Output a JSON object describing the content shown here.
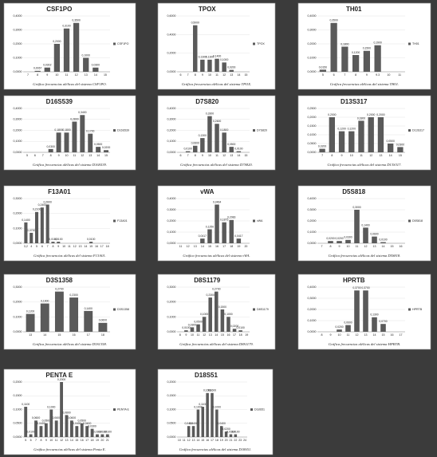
{
  "chart_data": [
    {
      "type": "bar",
      "title": "CSF1PO",
      "caption": "Gráfica frecuencias alélicas del sistema CSF1PO.",
      "categories": [
        "7",
        "8",
        "9",
        "10",
        "11",
        "12",
        "13",
        "14",
        "15"
      ],
      "series": [
        {
          "name": "CSF1PO",
          "color": "#5a5a5a",
          "values": [
            0,
            0.0067,
            0.0302,
            0.2,
            0.31,
            0.35,
            0.1,
            0.03,
            0
          ],
          "value_labels": [
            null,
            "0,0067",
            "0,0302",
            "0,2000",
            "0,3100",
            "0,3500",
            "0,1000",
            "0,0300",
            null
          ]
        }
      ],
      "ylim": [
        0,
        0.4
      ],
      "yticks": [
        {
          "value": 0,
          "label": "0,0000"
        },
        {
          "value": 0.1,
          "label": "0,1000"
        },
        {
          "value": 0.2,
          "label": "0,2000"
        },
        {
          "value": 0.3,
          "label": "0,3000"
        },
        {
          "value": 0.4,
          "label": "0,4000"
        }
      ]
    },
    {
      "type": "bar",
      "title": "TPOX",
      "caption": "Gráfica frecuencias alélicas del sistema TPOX.",
      "categories": [
        "6",
        "7",
        "8",
        "9",
        "10",
        "11",
        "12",
        "13",
        "14",
        "15"
      ],
      "series": [
        {
          "name": "TPOX",
          "color": "#5a5a5a",
          "values": [
            0,
            0,
            0.5,
            0.13,
            0.13,
            0.14,
            0.1,
            0.02,
            0,
            0
          ],
          "value_labels": [
            null,
            null,
            "0,5000",
            "0,1300",
            "0,1300",
            "0,1400",
            "0,1000",
            "0,0200",
            null,
            null
          ]
        }
      ],
      "ylim": [
        0,
        0.6
      ],
      "yticks": [
        {
          "value": 0,
          "label": "0,0000"
        },
        {
          "value": 0.2,
          "label": "0,2000"
        },
        {
          "value": 0.4,
          "label": "0,4000"
        },
        {
          "value": 0.6,
          "label": "0,6000"
        }
      ]
    },
    {
      "type": "bar",
      "title": "TH01",
      "caption": "Gráfica frecuencias alélicas del sistema TH01.",
      "categories": [
        "5",
        "6",
        "7",
        "8",
        "9",
        "9.3",
        "10",
        "11"
      ],
      "series": [
        {
          "name": "TH01",
          "color": "#5a5a5a",
          "values": [
            0.015,
            0.35,
            0.18,
            0.12,
            0.15,
            0.19,
            0,
            0
          ],
          "value_labels": [
            "0,0150",
            "0,3500",
            "0,1800",
            "0,1200",
            "0,1500",
            "0,1900",
            null,
            null
          ]
        }
      ],
      "ylim": [
        0,
        0.4
      ],
      "yticks": [
        {
          "value": 0,
          "label": "0,0000"
        },
        {
          "value": 0.1,
          "label": "0,1000"
        },
        {
          "value": 0.2,
          "label": "0,2000"
        },
        {
          "value": 0.3,
          "label": "0,3000"
        },
        {
          "value": 0.4,
          "label": "0,4000"
        }
      ]
    },
    {
      "type": "bar",
      "title": "D16S539",
      "caption": "Gráfica frecuencias alélicas del sistema D16S539.",
      "categories": [
        "5",
        "6",
        "7",
        "8",
        "9",
        "10",
        "11",
        "12",
        "13",
        "14",
        "15"
      ],
      "series": [
        {
          "name": "D16S539",
          "color": "#5a5a5a",
          "values": [
            0,
            0,
            0,
            0.03,
            0.18,
            0.18,
            0.28,
            0.34,
            0.17,
            0.05,
            0.02
          ],
          "value_labels": [
            null,
            null,
            null,
            "0,0300",
            "0,1800",
            "0,1800",
            "0,2800",
            "0,3400",
            "0,1700",
            "0,0500",
            "0,0200"
          ]
        }
      ],
      "ylim": [
        0,
        0.4
      ],
      "yticks": [
        {
          "value": 0,
          "label": "0,0000"
        },
        {
          "value": 0.1,
          "label": "0,1000"
        },
        {
          "value": 0.2,
          "label": "0,2000"
        },
        {
          "value": 0.3,
          "label": "0,3000"
        },
        {
          "value": 0.4,
          "label": "0,4000"
        }
      ]
    },
    {
      "type": "bar",
      "title": "D7S820",
      "caption": "Gráfica frecuencias alélicas del sistema D7S820.",
      "categories": [
        "6",
        "7",
        "8",
        "9",
        "10",
        "11",
        "12",
        "13",
        "14",
        "15"
      ],
      "series": [
        {
          "name": "D7S820",
          "color": "#5a5a5a",
          "values": [
            0,
            0.01,
            0.06,
            0.13,
            0.33,
            0.26,
            0.18,
            0.05,
            0.01,
            0
          ],
          "value_labels": [
            null,
            "0,0100",
            "0,0600",
            "0,1300",
            "0,3300",
            "0,2600",
            "0,1800",
            "0,0500",
            "0,0100",
            null
          ]
        }
      ],
      "ylim": [
        0,
        0.4
      ],
      "yticks": [
        {
          "value": 0,
          "label": "0,0000"
        },
        {
          "value": 0.1,
          "label": "0,1000"
        },
        {
          "value": 0.2,
          "label": "0,2000"
        },
        {
          "value": 0.3,
          "label": "0,3000"
        },
        {
          "value": 0.4,
          "label": "0,4000"
        }
      ]
    },
    {
      "type": "bar",
      "title": "D13S317",
      "caption": "Gráfica frecuencias alélicas del sistema D13S317.",
      "categories": [
        "7",
        "8",
        "9",
        "10",
        "11",
        "12",
        "13",
        "14",
        "15"
      ],
      "series": [
        {
          "name": "D13S317",
          "color": "#5a5a5a",
          "values": [
            0.02,
            0.2,
            0.12,
            0.12,
            0.18,
            0.2,
            0.2,
            0.05,
            0.03
          ],
          "value_labels": [
            "0,0200",
            "0,2000",
            "0,1200",
            "0,1200",
            "0,1800",
            "0,2000",
            "0,2000",
            "0,0500",
            "0,0300"
          ]
        }
      ],
      "ylim": [
        0,
        0.25
      ],
      "yticks": [
        {
          "value": 0,
          "label": "0,0000"
        },
        {
          "value": 0.05,
          "label": "0,0500"
        },
        {
          "value": 0.1,
          "label": "0,1000"
        },
        {
          "value": 0.15,
          "label": "0,1500"
        },
        {
          "value": 0.2,
          "label": "0,2000"
        },
        {
          "value": 0.25,
          "label": "0,2500"
        }
      ]
    },
    {
      "type": "bar",
      "title": "F13A01",
      "caption": "Gráfica frecuencias alélicas del sistema F13A01.",
      "categories": [
        "3,2",
        "4",
        "5",
        "6",
        "7",
        "8",
        "9",
        "10",
        "11",
        "12",
        "13",
        "14",
        "15",
        "16",
        "17",
        "18"
      ],
      "series": [
        {
          "name": "F13A01",
          "color": "#5a5a5a",
          "values": [
            0.14,
            0.07,
            0.21,
            0.24,
            0.26,
            0.01,
            0.01,
            0,
            0,
            0,
            0,
            0,
            0.01,
            0,
            0,
            0
          ],
          "value_labels": [
            "0,1400",
            "0,0700",
            "0,2100",
            "0,2400",
            "0,2600",
            "0,0100",
            "0,0100",
            null,
            null,
            null,
            null,
            null,
            "0,0100",
            null,
            null,
            null
          ]
        }
      ],
      "ylim": [
        0,
        0.3
      ],
      "yticks": [
        {
          "value": 0,
          "label": "0,0000"
        },
        {
          "value": 0.1,
          "label": "0,1000"
        },
        {
          "value": 0.2,
          "label": "0,2000"
        },
        {
          "value": 0.3,
          "label": "0,3000"
        }
      ]
    },
    {
      "type": "bar",
      "title": "vWA",
      "caption": "Gráfica frecuencias alélicas del sistema vWA.",
      "categories": [
        "11",
        "12",
        "13",
        "14",
        "15",
        "16",
        "17",
        "18",
        "19",
        "20"
      ],
      "series": [
        {
          "name": "vWA",
          "color": "#5a5a5a",
          "values": [
            0,
            0,
            0,
            0.0417,
            0.125,
            0.3464,
            0.1875,
            0.2083,
            0.0417,
            0
          ],
          "value_labels": [
            null,
            null,
            null,
            "0,0417",
            "0,1250",
            "0,3464",
            "0,1875",
            "0,2083",
            "0,0417",
            null
          ]
        }
      ],
      "ylim": [
        0,
        0.4
      ],
      "yticks": [
        {
          "value": 0,
          "label": "0,0000"
        },
        {
          "value": 0.1,
          "label": "0,1000"
        },
        {
          "value": 0.2,
          "label": "0,2000"
        },
        {
          "value": 0.3,
          "label": "0,3000"
        },
        {
          "value": 0.4,
          "label": "0,4000"
        }
      ]
    },
    {
      "type": "bar",
      "title": "D5S818",
      "caption": "Gráfica frecuencias alélicas del sistema D5S818.",
      "categories": [
        "7",
        "8",
        "9",
        "10",
        "11",
        "12",
        "13",
        "14",
        "15",
        "16"
      ],
      "series": [
        {
          "name": "D5S818",
          "color": "#5a5a5a",
          "values": [
            0,
            0.02,
            0.02,
            0.03,
            0.3,
            0.14,
            0.06,
            0.01,
            0,
            0
          ],
          "value_labels": [
            null,
            "0,0200",
            "0,0200",
            "0,0300",
            "0,3000",
            "0,1400",
            "0,0600",
            "0,0100",
            null,
            null
          ]
        }
      ],
      "ylim": [
        0,
        0.4
      ],
      "yticks": [
        {
          "value": 0,
          "label": "0,0000"
        },
        {
          "value": 0.1,
          "label": "0,1000"
        },
        {
          "value": 0.2,
          "label": "0,2000"
        },
        {
          "value": 0.3,
          "label": "0,3000"
        },
        {
          "value": 0.4,
          "label": "0,4000"
        }
      ]
    },
    {
      "type": "bar",
      "title": "D3S1358",
      "caption": "Gráfica frecuencias alélicas del sistema D3S1358.",
      "categories": [
        "13",
        "14",
        "15",
        "16",
        "17",
        "18"
      ],
      "series": [
        {
          "name": "D3S1358",
          "color": "#5a5a5a",
          "values": [
            0.12,
            0.19,
            0.27,
            0.23,
            0.14,
            0.06
          ],
          "value_labels": [
            "0,1200",
            "0,1900",
            "0,2700",
            "0,2300",
            "0,1400",
            "0,0600"
          ]
        }
      ],
      "ylim": [
        0,
        0.3
      ],
      "yticks": [
        {
          "value": 0,
          "label": "0,0000"
        },
        {
          "value": 0.1,
          "label": "0,1000"
        },
        {
          "value": 0.2,
          "label": "0,2000"
        },
        {
          "value": 0.3,
          "label": "0,3000"
        }
      ]
    },
    {
      "type": "bar",
      "title": "D8S1179",
      "caption": "Gráfica frecuencias alélicas del sistema D8S1179.",
      "categories": [
        "8",
        "9",
        "10",
        "11",
        "12",
        "13",
        "14",
        "15",
        "16",
        "17",
        "18",
        "19"
      ],
      "series": [
        {
          "name": "D8S1179",
          "color": "#5a5a5a",
          "values": [
            0,
            0.01,
            0.03,
            0.05,
            0.1,
            0.23,
            0.27,
            0.15,
            0.1,
            0.02,
            0.01,
            0
          ],
          "value_labels": [
            null,
            "0,0100",
            "0,0300",
            "0,0500",
            "0,1000",
            "0,2300",
            "0,2700",
            "0,1500",
            "0,1000",
            "0,0200",
            "0,0100",
            null
          ]
        }
      ],
      "ylim": [
        0,
        0.3
      ],
      "yticks": [
        {
          "value": 0,
          "label": "0,0000"
        },
        {
          "value": 0.1,
          "label": "0,1000"
        },
        {
          "value": 0.2,
          "label": "0,2000"
        },
        {
          "value": 0.3,
          "label": "0,3000"
        }
      ]
    },
    {
      "type": "bar",
      "title": "HPRTB",
      "caption": "Gráfica frecuencias alélicas del sistema HPRTB.",
      "categories": [
        "8",
        "9",
        "10",
        "11",
        "12",
        "13",
        "14",
        "15",
        "16",
        "17"
      ],
      "series": [
        {
          "name": "HPRTB",
          "color": "#5a5a5a",
          "values": [
            0,
            0,
            0.02,
            0.06,
            0.37,
            0.37,
            0.13,
            0.07,
            0,
            0
          ],
          "value_labels": [
            null,
            null,
            "0,0200",
            "0,0600",
            "0,3700",
            "0,3700",
            "0,1300",
            "0,0700",
            null,
            null
          ]
        }
      ],
      "ylim": [
        0,
        0.4
      ],
      "yticks": [
        {
          "value": 0,
          "label": "0,0000"
        },
        {
          "value": 0.1,
          "label": "0,1000"
        },
        {
          "value": 0.2,
          "label": "0,2000"
        },
        {
          "value": 0.3,
          "label": "0,3000"
        },
        {
          "value": 0.4,
          "label": "0,4000"
        }
      ]
    },
    {
      "type": "bar",
      "title": "PENTA E",
      "caption": "Gráfica frecuencias alélicas del sistema Penta E.",
      "categories": [
        "5",
        "6",
        "7",
        "8",
        "9",
        "10",
        "11",
        "12",
        "13",
        "14",
        "15",
        "16",
        "17",
        "18",
        "19",
        "20",
        "21"
      ],
      "series": [
        {
          "name": "PENTA E",
          "color": "#5a5a5a",
          "values": [
            0.11,
            0.01,
            0.06,
            0.04,
            0.05,
            0.1,
            0.06,
            0.2,
            0.08,
            0.06,
            0.04,
            0.05,
            0.04,
            0.03,
            0.01,
            0.01,
            0.01
          ],
          "value_labels": [
            "0,1100",
            "0,0100",
            "0,0600",
            "0,0400",
            "0,0500",
            "0,1000",
            "0,0600",
            "0,2000",
            "0,0800",
            "0,0600",
            "0,0400",
            "0,0500",
            "0,0400",
            "0,0300",
            "0,0100",
            "0,0100",
            "0,0100"
          ]
        }
      ],
      "ylim": [
        0,
        0.2
      ],
      "yticks": [
        {
          "value": 0,
          "label": "0,0000"
        },
        {
          "value": 0.05,
          "label": "0,0500"
        },
        {
          "value": 0.1,
          "label": "0,1000"
        },
        {
          "value": 0.15,
          "label": "0,1500"
        },
        {
          "value": 0.2,
          "label": "0,2000"
        }
      ]
    },
    {
      "type": "bar",
      "title": "D18S51",
      "caption": "Gráfica frecuencias alélicas del sistema D18S51.",
      "categories": [
        "10",
        "11",
        "12",
        "13",
        "14",
        "15",
        "16",
        "17",
        "18",
        "19",
        "20",
        "21",
        "22",
        "23",
        "24"
      ],
      "series": [
        {
          "name": "D18S51",
          "color": "#5a5a5a",
          "values": [
            0,
            0,
            0.04,
            0.04,
            0.1,
            0.11,
            0.16,
            0.16,
            0.1,
            0.04,
            0.02,
            0.01,
            0.01,
            0,
            0
          ],
          "value_labels": [
            null,
            null,
            "0,0400",
            "0,0400",
            "0,1000",
            "0,1100",
            "0,1600",
            "0,1600",
            "0,1000",
            "0,0400",
            "0,0200",
            "0,0100",
            "0,0100",
            null,
            null
          ]
        }
      ],
      "ylim": [
        0,
        0.2
      ],
      "yticks": [
        {
          "value": 0,
          "label": "0,0000"
        },
        {
          "value": 0.05,
          "label": "0,0500"
        },
        {
          "value": 0.1,
          "label": "0,1000"
        },
        {
          "value": 0.15,
          "label": "0,1500"
        },
        {
          "value": 0.2,
          "label": "0,2000"
        }
      ]
    }
  ]
}
